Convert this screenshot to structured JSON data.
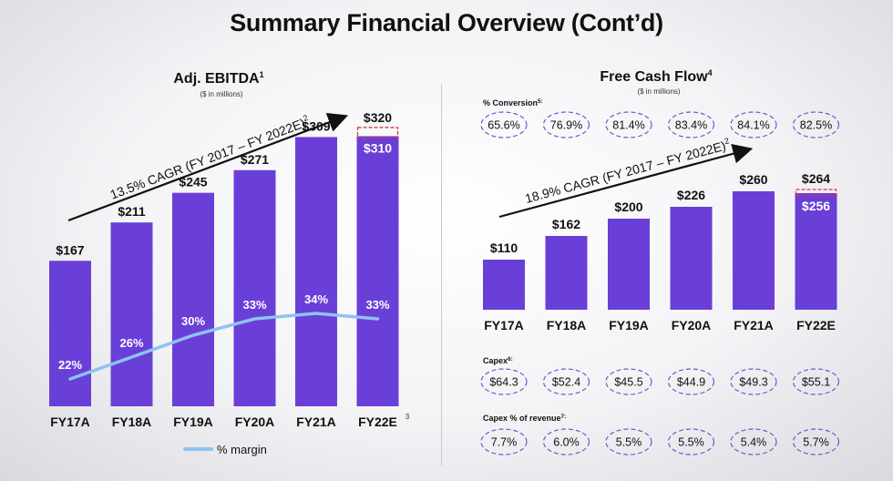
{
  "page_title": "Summary Financial Overview (Cont’d)",
  "chart_data": [
    {
      "type": "bar",
      "title": "Adj. EBITDA",
      "title_sup": "1",
      "subtitle": "($ in millions)",
      "categories": [
        "FY17A",
        "FY18A",
        "FY19A",
        "FY20A",
        "FY21A",
        "FY22E"
      ],
      "values": [
        167,
        211,
        245,
        271,
        309,
        310
      ],
      "value_labels": [
        "$167",
        "$211",
        "$245",
        "$271",
        "$309",
        "$310"
      ],
      "projected_value": 320,
      "projected_label": "$320",
      "ylim": [
        0,
        345
      ],
      "cagr_text": "13.5% CAGR (FY 2017 – FY 2022E)",
      "cagr_sup": "2",
      "note_sup": "3",
      "line_series": {
        "name": "% margin",
        "values": [
          22,
          26,
          30,
          33,
          34,
          33
        ],
        "labels": [
          "22%",
          "26%",
          "30%",
          "33%",
          "34%",
          "33%"
        ],
        "ylim": [
          0,
          60
        ],
        "color": "#8ec3ef"
      },
      "bar_color": "#6a3fd8"
    },
    {
      "type": "bar",
      "title": "Free Cash Flow",
      "title_sup": "4",
      "subtitle": "($ in millions)",
      "categories": [
        "FY17A",
        "FY18A",
        "FY19A",
        "FY20A",
        "FY21A",
        "FY22E"
      ],
      "values": [
        110,
        162,
        200,
        226,
        260,
        256
      ],
      "value_labels": [
        "$110",
        "$162",
        "$200",
        "$226",
        "$260",
        "$256"
      ],
      "projected_value": 264,
      "projected_label": "$264",
      "ylim": [
        0,
        290
      ],
      "cagr_text": "18.9% CAGR (FY 2017 – FY 2022E)",
      "cagr_sup": "2",
      "bar_color": "#6a3fd8"
    }
  ],
  "fcf_rows": {
    "conversion": {
      "label": "% Conversion",
      "sup": "5",
      "values": [
        "65.6%",
        "76.9%",
        "81.4%",
        "83.4%",
        "84.1%",
        "82.5%"
      ]
    },
    "capex": {
      "label": "Capex",
      "sup": "6",
      "values": [
        "$64.3",
        "$52.4",
        "$45.5",
        "$44.9",
        "$49.3",
        "$55.1"
      ]
    },
    "capex_pct": {
      "label": "Capex % of revenue",
      "sup": "7",
      "values": [
        "7.7%",
        "6.0%",
        "5.5%",
        "5.5%",
        "5.4%",
        "5.7%"
      ]
    }
  },
  "colors": {
    "bar": "#6a3fd8",
    "oval": "#6a5bc9",
    "margin_line": "#8ec3ef",
    "highlight_box": "#d9363e"
  }
}
